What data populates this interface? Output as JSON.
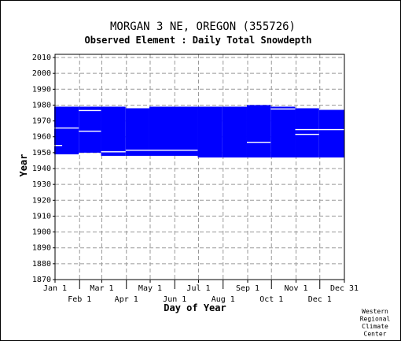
{
  "chart_data": {
    "type": "heatmap",
    "title": "MORGAN 3 NE, OREGON   (355726)",
    "subtitle": "Observed Element : Daily Total Snowdepth",
    "xlabel": "Day of Year",
    "ylabel": "Year",
    "ylim": [
      1870,
      2012
    ],
    "xlim": [
      1,
      366
    ],
    "y_ticks": [
      1870,
      1880,
      1890,
      1900,
      1910,
      1920,
      1930,
      1940,
      1950,
      1960,
      1970,
      1980,
      1990,
      2000,
      2010
    ],
    "x_ticks_top_row": [
      {
        "label": "Jan 1",
        "day": 1
      },
      {
        "label": "Mar 1",
        "day": 60
      },
      {
        "label": "May 1",
        "day": 121
      },
      {
        "label": "Jul 1",
        "day": 182
      },
      {
        "label": "Sep 1",
        "day": 244
      },
      {
        "label": "Nov 1",
        "day": 305
      },
      {
        "label": "Dec 31",
        "day": 366
      }
    ],
    "x_ticks_bottom_row": [
      {
        "label": "Feb 1",
        "day": 32
      },
      {
        "label": "Apr 1",
        "day": 91
      },
      {
        "label": "Jun 1",
        "day": 152
      },
      {
        "label": "Aug 1",
        "day": 213
      },
      {
        "label": "Oct 1",
        "day": 274
      },
      {
        "label": "Dec 1",
        "day": 335
      }
    ],
    "grid": true,
    "data_color": "#0000ff",
    "coverage_blocks": [
      {
        "day_start": 1,
        "day_end": 31,
        "year_start": 1949,
        "year_end": 1978
      },
      {
        "day_start": 32,
        "day_end": 59,
        "year_start": 1950,
        "year_end": 1978
      },
      {
        "day_start": 60,
        "day_end": 90,
        "year_start": 1948,
        "year_end": 1978
      },
      {
        "day_start": 91,
        "day_end": 120,
        "year_start": 1948,
        "year_end": 1977
      },
      {
        "day_start": 121,
        "day_end": 181,
        "year_start": 1948,
        "year_end": 1978
      },
      {
        "day_start": 182,
        "day_end": 212,
        "year_start": 1947,
        "year_end": 1978
      },
      {
        "day_start": 213,
        "day_end": 243,
        "year_start": 1947,
        "year_end": 1978
      },
      {
        "day_start": 244,
        "day_end": 273,
        "year_start": 1947,
        "year_end": 1979
      },
      {
        "day_start": 274,
        "day_end": 304,
        "year_start": 1947,
        "year_end": 1978
      },
      {
        "day_start": 305,
        "day_end": 334,
        "year_start": 1947,
        "year_end": 1977
      },
      {
        "day_start": 335,
        "day_end": 366,
        "year_start": 1947,
        "year_end": 1976
      }
    ],
    "missing_gaps": [
      {
        "day_start": 1,
        "day_end": 31,
        "year": 1965
      },
      {
        "day_start": 32,
        "day_end": 59,
        "year": 1976
      },
      {
        "day_start": 32,
        "day_end": 59,
        "year": 1963
      },
      {
        "day_start": 60,
        "day_end": 90,
        "year": 1950
      },
      {
        "day_start": 91,
        "day_end": 181,
        "year": 1951
      },
      {
        "day_start": 244,
        "day_end": 273,
        "year": 1956
      },
      {
        "day_start": 274,
        "day_end": 304,
        "year": 1977
      },
      {
        "day_start": 305,
        "day_end": 366,
        "year": 1964
      },
      {
        "day_start": 305,
        "day_end": 334,
        "year": 1961
      },
      {
        "day_start": 1,
        "day_end": 10,
        "year": 1954
      }
    ],
    "credit": [
      "Western",
      "Regional",
      "Climate",
      "Center"
    ]
  }
}
